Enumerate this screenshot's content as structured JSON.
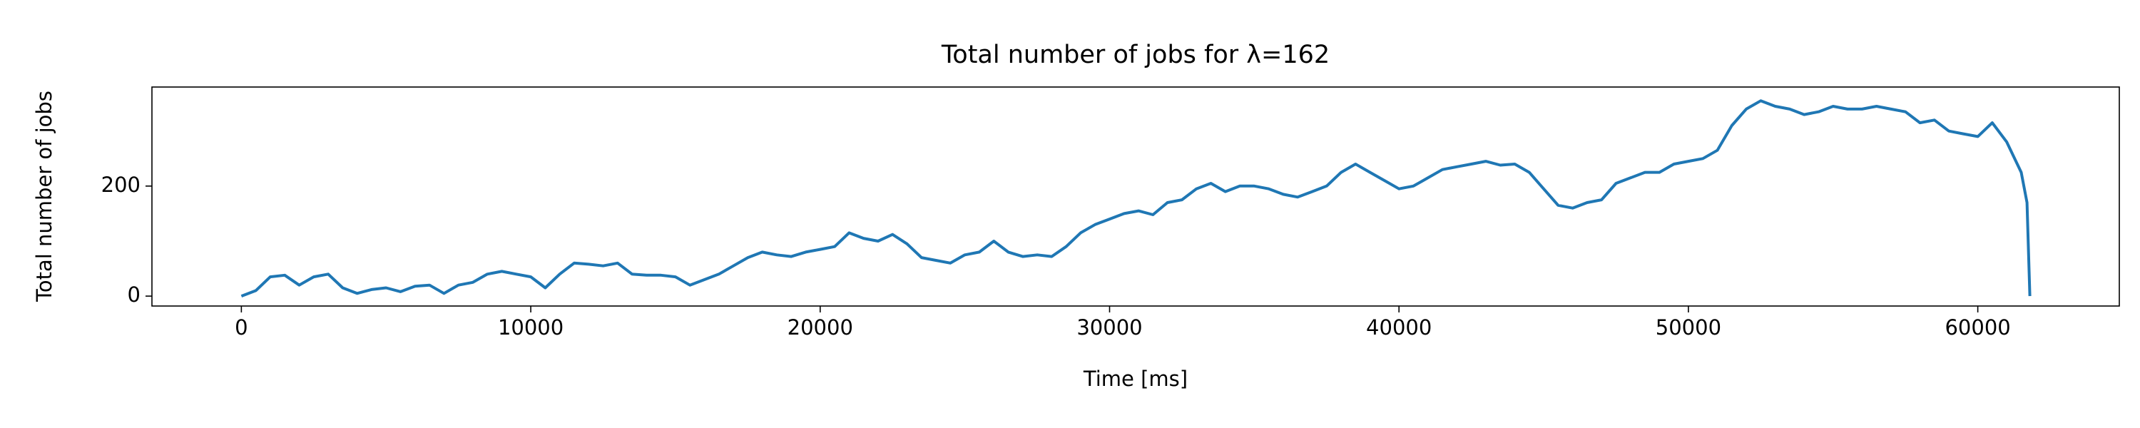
{
  "chart_data": {
    "type": "line",
    "title": "Total number of jobs for λ=162",
    "x_label": "Time [ms]",
    "y_label": "Total number of jobs",
    "x": [
      0,
      500,
      1000,
      1500,
      2000,
      2500,
      3000,
      3500,
      4000,
      4500,
      5000,
      5500,
      6000,
      6500,
      7000,
      7500,
      8000,
      8500,
      9000,
      9500,
      10000,
      10500,
      11000,
      11500,
      12000,
      12500,
      13000,
      13500,
      14000,
      14500,
      15000,
      15500,
      16000,
      16500,
      17000,
      17500,
      18000,
      18500,
      19000,
      19500,
      20000,
      20500,
      21000,
      21500,
      22000,
      22500,
      23000,
      23500,
      24000,
      24500,
      25000,
      25500,
      26000,
      26500,
      27000,
      27500,
      28000,
      28500,
      29000,
      29500,
      30000,
      30500,
      31000,
      31500,
      32000,
      32500,
      33000,
      33500,
      34000,
      34500,
      35000,
      35500,
      36000,
      36500,
      37000,
      37500,
      38000,
      38500,
      39000,
      39500,
      40000,
      40500,
      41000,
      41500,
      42000,
      42500,
      43000,
      43500,
      44000,
      44500,
      45000,
      45500,
      46000,
      46500,
      47000,
      47500,
      48000,
      48500,
      49000,
      49500,
      50000,
      50500,
      51000,
      51500,
      52000,
      52500,
      53000,
      53500,
      54000,
      54500,
      55000,
      55500,
      56000,
      56500,
      57000,
      57500,
      58000,
      58500,
      59000,
      59500,
      60000,
      60500,
      61000,
      61500,
      61700,
      61800
    ],
    "series": [
      {
        "name": "Total number of jobs",
        "color": "#1f77b4",
        "values": [
          0,
          10,
          35,
          38,
          20,
          35,
          40,
          15,
          5,
          12,
          15,
          8,
          18,
          20,
          5,
          20,
          25,
          40,
          45,
          40,
          35,
          15,
          40,
          60,
          58,
          55,
          60,
          40,
          38,
          38,
          35,
          20,
          30,
          40,
          55,
          70,
          80,
          75,
          72,
          80,
          85,
          90,
          115,
          105,
          100,
          112,
          95,
          70,
          65,
          60,
          75,
          80,
          100,
          80,
          72,
          75,
          72,
          90,
          115,
          130,
          140,
          150,
          155,
          148,
          170,
          175,
          195,
          205,
          190,
          200,
          200,
          195,
          185,
          180,
          190,
          200,
          225,
          240,
          225,
          210,
          195,
          200,
          215,
          230,
          235,
          240,
          245,
          238,
          240,
          225,
          195,
          165,
          160,
          170,
          175,
          205,
          215,
          225,
          225,
          240,
          245,
          250,
          265,
          310,
          340,
          355,
          345,
          340,
          330,
          335,
          345,
          340,
          340,
          345,
          340,
          335,
          315,
          320,
          300,
          295,
          290,
          315,
          280,
          225,
          170,
          0
        ]
      }
    ],
    "xlim": [
      -3090,
      64890
    ],
    "ylim": [
      -18,
      380
    ],
    "xticks": [
      0,
      10000,
      20000,
      30000,
      40000,
      50000,
      60000
    ],
    "yticks": [
      0,
      200
    ]
  }
}
